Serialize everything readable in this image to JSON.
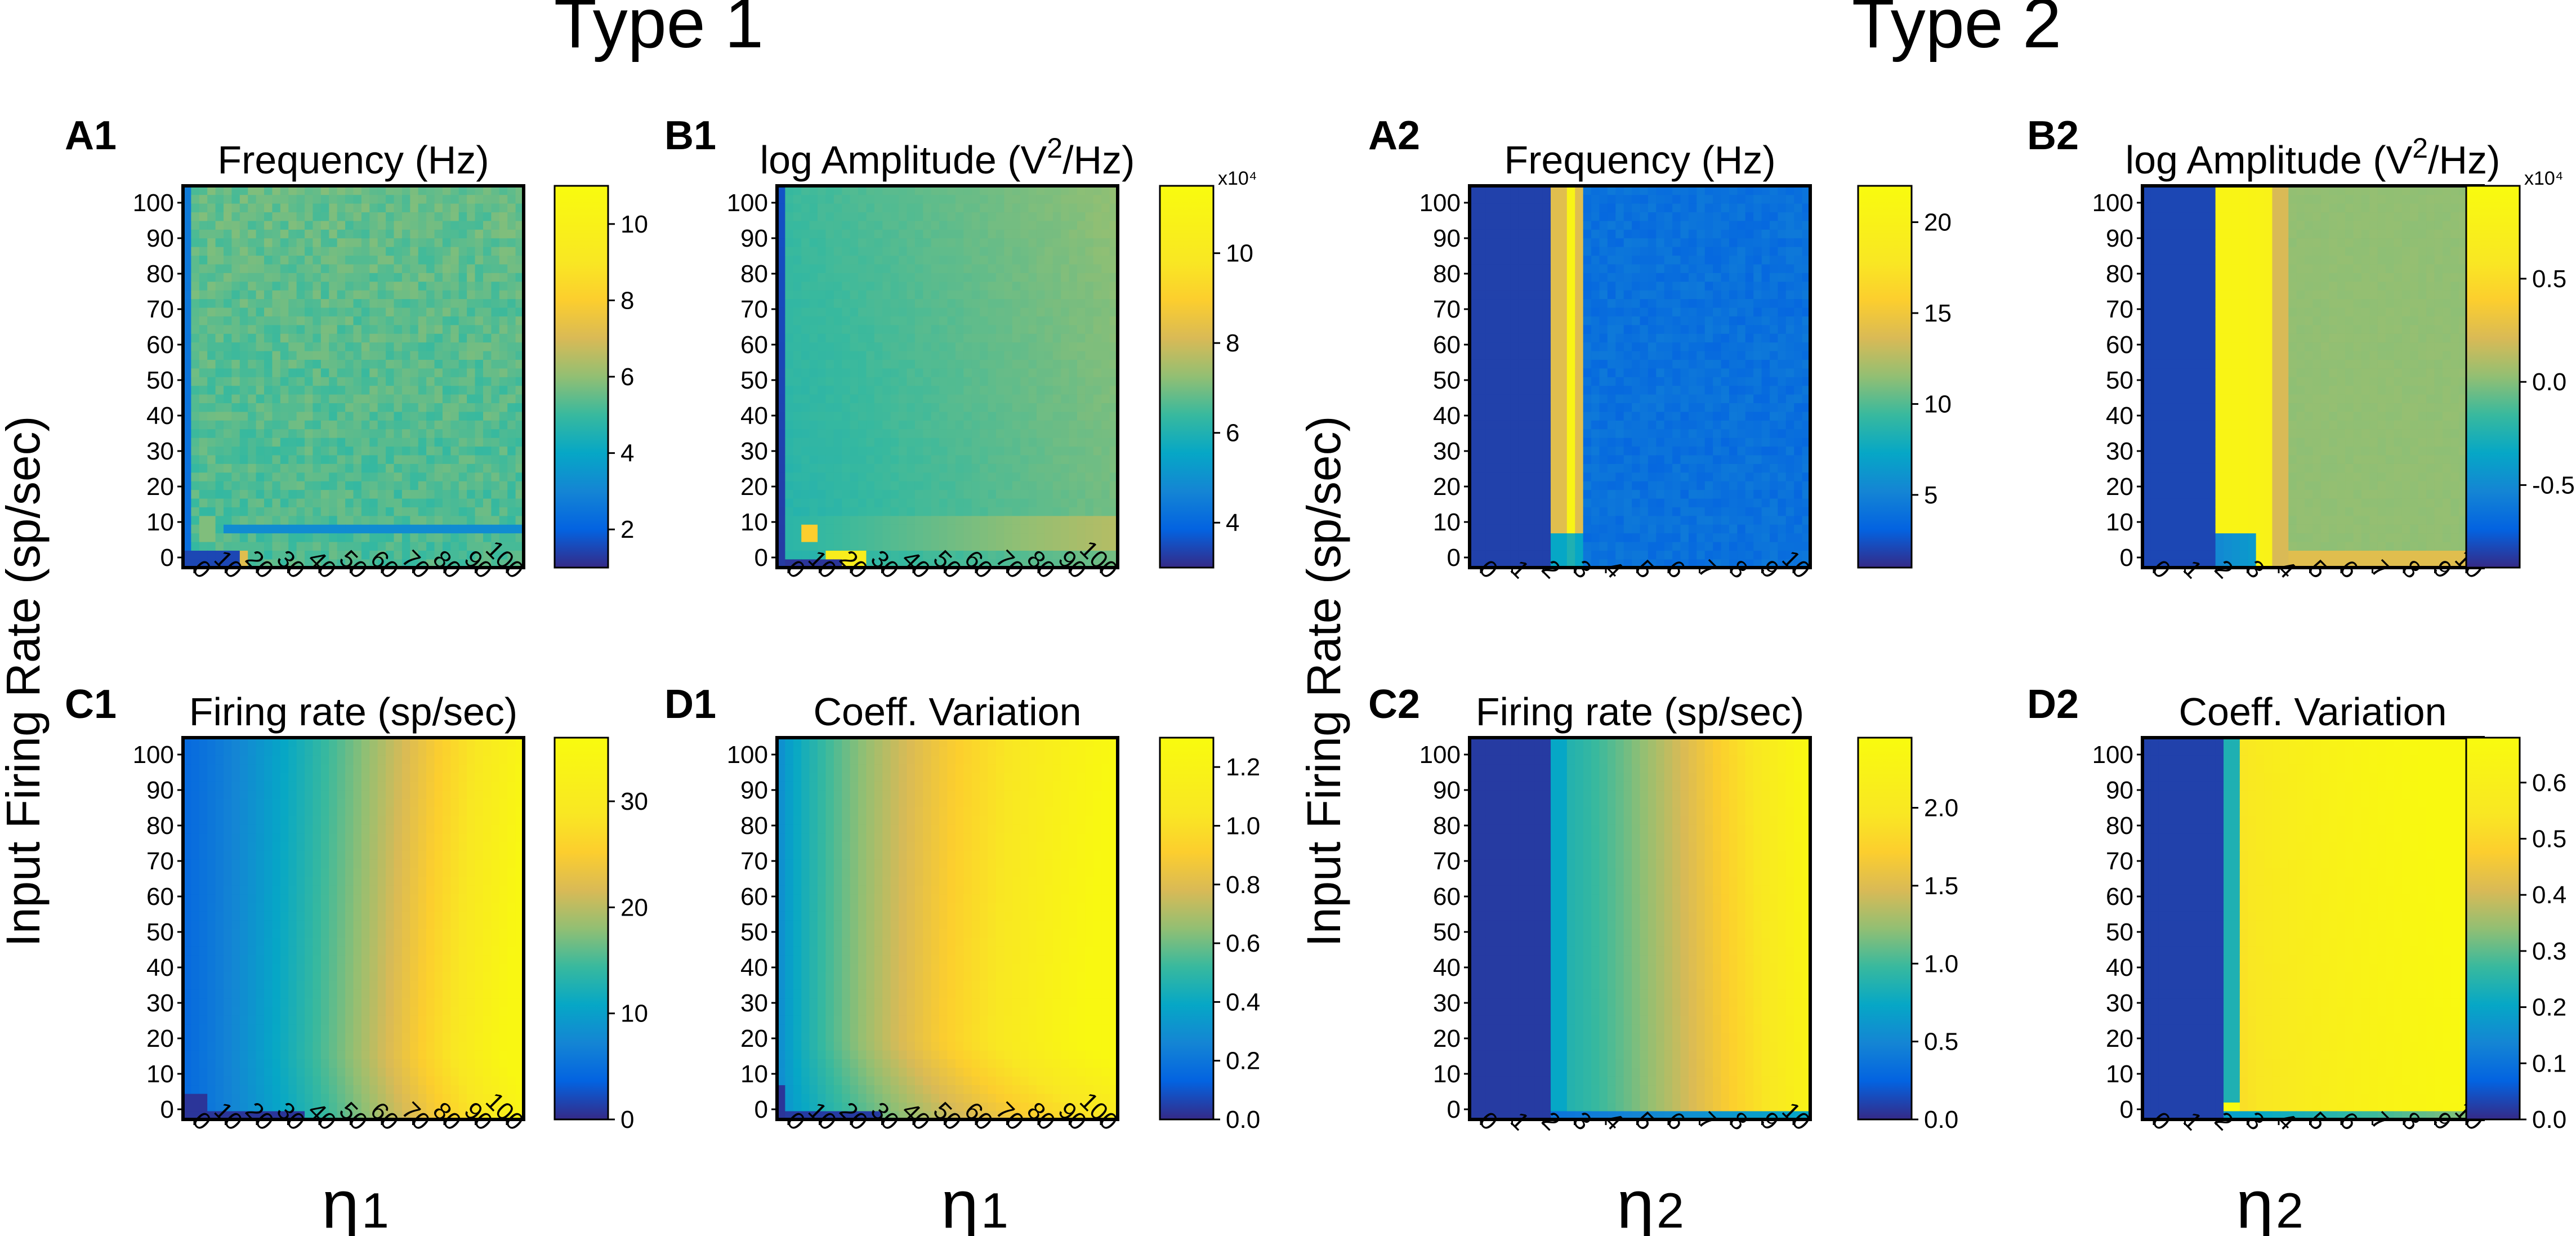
{
  "figure": {
    "group_titles": [
      "Type 1",
      "Type 2"
    ],
    "ylabel": "Input  Firing  Rate  (sp/sec)",
    "xlabels": [
      {
        "symbol": "η",
        "sub": "1"
      },
      {
        "symbol": "η",
        "sub": "1"
      },
      {
        "symbol": "η",
        "sub": "2"
      },
      {
        "symbol": "η",
        "sub": "2"
      }
    ]
  },
  "chart_data": [
    {
      "id": "A1",
      "type": "heatmap",
      "title": "Frequency  (Hz)",
      "x_ticks": [
        "0",
        "10",
        "20",
        "30",
        "40",
        "50",
        "60",
        "70",
        "80",
        "90",
        "100"
      ],
      "y_ticks": [
        "0",
        "10",
        "20",
        "30",
        "40",
        "50",
        "60",
        "70",
        "80",
        "90",
        "100"
      ],
      "x_range": [
        0,
        100
      ],
      "y_range": [
        0,
        100
      ],
      "colorbar": {
        "min": 1.0,
        "max": 11.0,
        "ticks": [
          2,
          4,
          6,
          8,
          10
        ],
        "labels": [
          "2",
          "4",
          "6",
          "8",
          "10"
        ],
        "exponent": null
      },
      "pattern": "freq1"
    },
    {
      "id": "B1",
      "type": "heatmap",
      "title_main": "log  Amplitude  (V",
      "title_sup": "2",
      "title_end": "/Hz)",
      "x_ticks": [
        "0",
        "10",
        "20",
        "30",
        "40",
        "50",
        "60",
        "70",
        "80",
        "90",
        "100"
      ],
      "y_ticks": [
        "0",
        "10",
        "20",
        "30",
        "40",
        "50",
        "60",
        "70",
        "80",
        "90",
        "100"
      ],
      "x_range": [
        0,
        100
      ],
      "y_range": [
        0,
        100
      ],
      "colorbar": {
        "min": 3.0,
        "max": 11.5,
        "ticks": [
          4,
          6,
          8,
          10
        ],
        "labels": [
          "4",
          "6",
          "8",
          "10"
        ],
        "exponent": "x10⁴"
      },
      "pattern": "amp1"
    },
    {
      "id": "A2",
      "type": "heatmap",
      "title": "Frequency  (Hz)",
      "x_ticks": [
        "0",
        "1",
        "2",
        "3",
        "4",
        "5",
        "6",
        "7",
        "8",
        "9",
        "10"
      ],
      "y_ticks": [
        "0",
        "10",
        "20",
        "30",
        "40",
        "50",
        "60",
        "70",
        "80",
        "90",
        "100"
      ],
      "x_range": [
        0,
        10
      ],
      "y_range": [
        0,
        100
      ],
      "colorbar": {
        "min": 1.0,
        "max": 22.0,
        "ticks": [
          5,
          10,
          15,
          20
        ],
        "labels": [
          "5",
          "10",
          "15",
          "20"
        ],
        "exponent": null
      },
      "pattern": "freq2"
    },
    {
      "id": "B2",
      "type": "heatmap",
      "title_main": "log  Amplitude  (V",
      "title_sup": "2",
      "title_end": "/Hz)",
      "x_ticks": [
        "0",
        "1",
        "2",
        "3",
        "4",
        "5",
        "6",
        "7",
        "8",
        "9",
        "10"
      ],
      "y_ticks": [
        "0",
        "10",
        "20",
        "30",
        "40",
        "50",
        "60",
        "70",
        "80",
        "90",
        "100"
      ],
      "x_range": [
        0,
        10
      ],
      "y_range": [
        0,
        100
      ],
      "colorbar": {
        "min": -0.9,
        "max": 0.95,
        "ticks": [
          -0.5,
          0.0,
          0.5
        ],
        "labels": [
          "-0.5",
          "0.0",
          "0.5"
        ],
        "exponent": "x10⁴"
      },
      "pattern": "amp2"
    },
    {
      "id": "C1",
      "type": "heatmap",
      "title": "Firing  rate  (sp/sec)",
      "x_ticks": [
        "0",
        "10",
        "20",
        "30",
        "40",
        "50",
        "60",
        "70",
        "80",
        "90",
        "100"
      ],
      "y_ticks": [
        "0",
        "10",
        "20",
        "30",
        "40",
        "50",
        "60",
        "70",
        "80",
        "90",
        "100"
      ],
      "x_range": [
        0,
        100
      ],
      "y_range": [
        0,
        100
      ],
      "colorbar": {
        "min": 0,
        "max": 36,
        "ticks": [
          0,
          10,
          20,
          30
        ],
        "labels": [
          "0",
          "10",
          "20",
          "30"
        ],
        "exponent": null
      },
      "pattern": "rate1"
    },
    {
      "id": "D1",
      "type": "heatmap",
      "title": "Coeff.  Variation",
      "x_ticks": [
        "0",
        "10",
        "20",
        "30",
        "40",
        "50",
        "60",
        "70",
        "80",
        "90",
        "100"
      ],
      "y_ticks": [
        "0",
        "10",
        "20",
        "30",
        "40",
        "50",
        "60",
        "70",
        "80",
        "90",
        "100"
      ],
      "x_range": [
        0,
        100
      ],
      "y_range": [
        0,
        100
      ],
      "colorbar": {
        "min": 0.0,
        "max": 1.3,
        "ticks": [
          0.0,
          0.2,
          0.4,
          0.6,
          0.8,
          1.0,
          1.2
        ],
        "labels": [
          "0.0",
          "0.2",
          "0.4",
          "0.6",
          "0.8",
          "1.0",
          "1.2"
        ],
        "exponent": null
      },
      "pattern": "cv1"
    },
    {
      "id": "C2",
      "type": "heatmap",
      "title": "Firing  rate  (sp/sec)",
      "x_ticks": [
        "0",
        "1",
        "2",
        "3",
        "4",
        "5",
        "6",
        "7",
        "8",
        "9",
        "10"
      ],
      "y_ticks": [
        "0",
        "10",
        "20",
        "30",
        "40",
        "50",
        "60",
        "70",
        "80",
        "90",
        "100"
      ],
      "x_range": [
        0,
        10
      ],
      "y_range": [
        0,
        100
      ],
      "colorbar": {
        "min": 0.0,
        "max": 2.45,
        "ticks": [
          0.0,
          0.5,
          1.0,
          1.5,
          2.0
        ],
        "labels": [
          "0.0",
          "0.5",
          "1.0",
          "1.5",
          "2.0"
        ],
        "exponent": null
      },
      "pattern": "rate2"
    },
    {
      "id": "D2",
      "type": "heatmap",
      "title": "Coeff.  Variation",
      "x_ticks": [
        "0",
        "1",
        "2",
        "3",
        "4",
        "5",
        "6",
        "7",
        "8",
        "9",
        "10"
      ],
      "y_ticks": [
        "0",
        "10",
        "20",
        "30",
        "40",
        "50",
        "60",
        "70",
        "80",
        "90",
        "100"
      ],
      "x_range": [
        0,
        10
      ],
      "y_range": [
        0,
        100
      ],
      "colorbar": {
        "min": 0.0,
        "max": 0.68,
        "ticks": [
          0.0,
          0.1,
          0.2,
          0.3,
          0.4,
          0.5,
          0.6
        ],
        "labels": [
          "0.0",
          "0.1",
          "0.2",
          "0.3",
          "0.4",
          "0.5",
          "0.6"
        ],
        "exponent": null
      },
      "pattern": "cv2"
    }
  ]
}
